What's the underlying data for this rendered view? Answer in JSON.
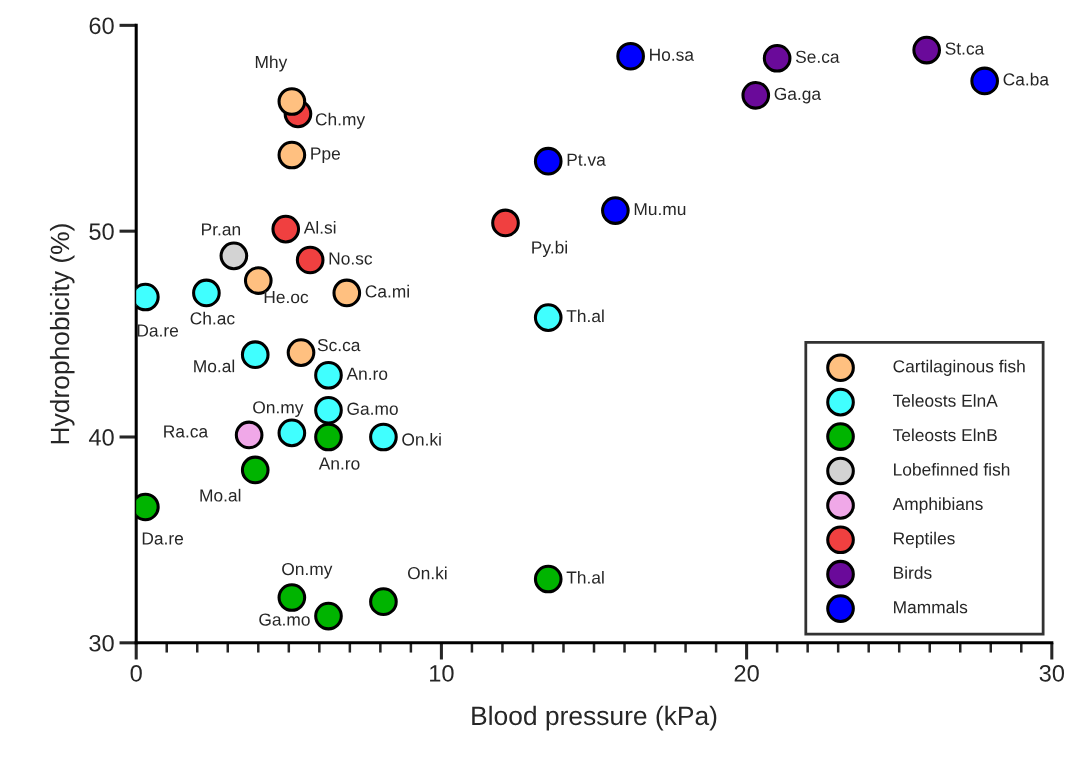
{
  "chart_data": {
    "type": "scatter",
    "xlabel": "Blood pressure (kPa)",
    "ylabel": "Hydrophobicity (%)",
    "xlim": [
      0,
      30
    ],
    "ylim": [
      30,
      60
    ],
    "xticks": [
      0,
      {
        "value": 1,
        "label": null
      },
      {
        "value": 2,
        "label": null
      },
      {
        "value": 3,
        "label": null
      },
      {
        "value": 4,
        "label": null
      },
      {
        "value": 5,
        "label": null
      },
      {
        "value": 6,
        "label": null
      },
      {
        "value": 7,
        "label": null
      },
      {
        "value": 8,
        "label": null
      },
      {
        "value": 9,
        "label": null
      },
      10,
      {
        "value": 11,
        "label": null
      },
      {
        "value": 12,
        "label": null
      },
      {
        "value": 13,
        "label": null
      },
      {
        "value": 14,
        "label": null
      },
      {
        "value": 15,
        "label": null
      },
      {
        "value": 16,
        "label": null
      },
      {
        "value": 17,
        "label": null
      },
      {
        "value": 18,
        "label": null
      },
      {
        "value": 19,
        "label": null
      },
      20,
      {
        "value": 21,
        "label": null
      },
      {
        "value": 22,
        "label": null
      },
      {
        "value": 23,
        "label": null
      },
      {
        "value": 24,
        "label": null
      },
      {
        "value": 25,
        "label": null
      },
      {
        "value": 26,
        "label": null
      },
      {
        "value": 27,
        "label": null
      },
      {
        "value": 28,
        "label": null
      },
      {
        "value": 29,
        "label": null
      },
      30
    ],
    "yticks": [
      30,
      40,
      50,
      60
    ],
    "grid": false,
    "legend": "bottom right",
    "marker": "circle",
    "series": [
      {
        "name": "Cartilaginous fish",
        "color": "#ffc080",
        "x": [
          5.1,
          5.1,
          4.0,
          6.9,
          5.4
        ],
        "values": [
          56.3,
          53.7,
          47.6,
          47.0,
          44.1
        ]
      },
      {
        "name": "Teleosts ElnA",
        "color": "#40ffff",
        "x": [
          0.3,
          2.3,
          3.9,
          6.3,
          6.3,
          5.1,
          8.1,
          13.5
        ],
        "values": [
          46.8,
          47.0,
          44.0,
          43.0,
          41.3,
          40.2,
          40.0,
          45.8
        ]
      },
      {
        "name": "Teleosts ElnB",
        "color": "#00b400",
        "x": [
          0.3,
          3.9,
          6.3,
          5.1,
          6.3,
          8.1,
          13.5
        ],
        "values": [
          36.6,
          38.4,
          40.0,
          32.2,
          31.3,
          32.0,
          33.1
        ]
      },
      {
        "name": "Lobefinned fish",
        "color": "#d3d3d3",
        "x": [
          3.2
        ],
        "values": [
          48.8
        ]
      },
      {
        "name": "Amphibians",
        "color": "#f0a8e8",
        "x": [
          3.7
        ],
        "values": [
          40.1
        ]
      },
      {
        "name": "Reptiles",
        "color": "#f04040",
        "x": [
          5.3,
          4.9,
          5.7,
          12.1
        ],
        "values": [
          55.7,
          50.1,
          48.6,
          50.4
        ]
      },
      {
        "name": "Birds",
        "color": "#6a0a9a",
        "x": [
          21.0,
          20.3,
          25.9
        ],
        "values": [
          58.4,
          56.6,
          58.8
        ]
      },
      {
        "name": "Mammals",
        "color": "#0000ff",
        "x": [
          16.2,
          13.5,
          15.7,
          27.8
        ],
        "values": [
          58.5,
          53.4,
          51.0,
          57.3
        ]
      }
    ],
    "annotations": [
      {
        "text": "Mhy",
        "x": 5.1,
        "y": 56.3
      },
      {
        "text": "Ppe",
        "x": 5.1,
        "y": 53.7
      },
      {
        "text": "He.oc",
        "x": 4.0,
        "y": 47.6
      },
      {
        "text": "Ca.mi",
        "x": 6.9,
        "y": 47.0
      },
      {
        "text": "Sc.ca",
        "x": 5.4,
        "y": 44.1
      },
      {
        "text": "Da.re",
        "x": 0.3,
        "y": 46.8
      },
      {
        "text": "Ch.ac",
        "x": 2.3,
        "y": 47.0
      },
      {
        "text": "Mo.al",
        "x": 3.9,
        "y": 44.0
      },
      {
        "text": "An.ro",
        "x": 6.3,
        "y": 43.0
      },
      {
        "text": "Ga.mo",
        "x": 6.3,
        "y": 41.3
      },
      {
        "text": "On.my",
        "x": 5.1,
        "y": 40.2
      },
      {
        "text": "On.ki",
        "x": 8.1,
        "y": 40.0
      },
      {
        "text": "Th.al",
        "x": 13.5,
        "y": 45.8
      },
      {
        "text": "Da.re",
        "x": 0.3,
        "y": 36.6
      },
      {
        "text": "Mo.al",
        "x": 3.9,
        "y": 38.4
      },
      {
        "text": "An.ro",
        "x": 6.3,
        "y": 40.0
      },
      {
        "text": "On.my",
        "x": 5.1,
        "y": 32.2
      },
      {
        "text": "Ga.mo",
        "x": 6.3,
        "y": 31.3
      },
      {
        "text": "On.ki",
        "x": 8.1,
        "y": 32.0
      },
      {
        "text": "Th.al",
        "x": 13.5,
        "y": 33.1
      },
      {
        "text": "Pr.an",
        "x": 3.2,
        "y": 48.8
      },
      {
        "text": "Ra.ca",
        "x": 3.7,
        "y": 40.1
      },
      {
        "text": "Ch.my",
        "x": 5.3,
        "y": 55.7
      },
      {
        "text": "Al.si",
        "x": 4.9,
        "y": 50.1
      },
      {
        "text": "No.sc",
        "x": 5.7,
        "y": 48.6
      },
      {
        "text": "Py.bi",
        "x": 12.1,
        "y": 50.4
      },
      {
        "text": "Se.ca",
        "x": 21.0,
        "y": 58.4
      },
      {
        "text": "Ga.ga",
        "x": 20.3,
        "y": 56.6
      },
      {
        "text": "St.ca",
        "x": 25.9,
        "y": 58.8
      },
      {
        "text": "Ho.sa",
        "x": 16.2,
        "y": 58.5
      },
      {
        "text": "Pt.va",
        "x": 13.5,
        "y": 53.4
      },
      {
        "text": "Mu.mu",
        "x": 15.7,
        "y": 51.0
      },
      {
        "text": "Ca.ba",
        "x": 27.8,
        "y": 57.3
      }
    ]
  }
}
